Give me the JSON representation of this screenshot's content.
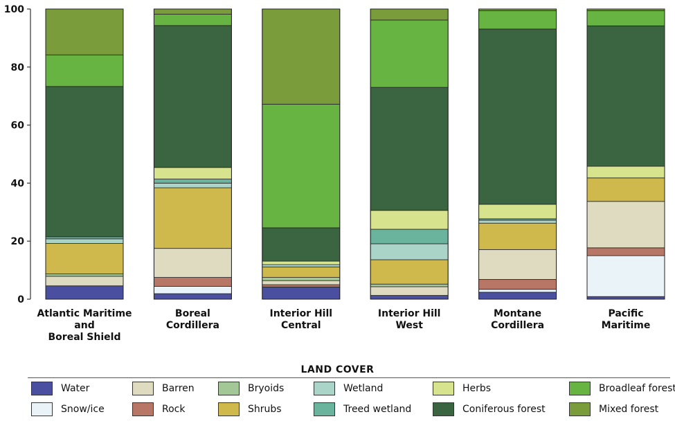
{
  "chart_data": {
    "type": "bar",
    "stacked": true,
    "ylim": [
      0,
      100
    ],
    "yticks": [
      0,
      20,
      40,
      60,
      80,
      100
    ],
    "categories": [
      "Atlantic Maritime\nand\nBoreal Shield",
      "Boreal\nCordillera",
      "Interior Hill\nCentral",
      "Interior Hill\nWest",
      "Montane\nCordillera",
      "Pacific\nMaritime"
    ],
    "legend_title": "LAND COVER",
    "series": [
      {
        "name": "Water",
        "color": "#4b4fa0",
        "values": [
          4.6,
          1.9,
          4.2,
          1.3,
          2.4,
          0.9
        ]
      },
      {
        "name": "Snow/ice",
        "color": "#eaf3f7",
        "values": [
          0,
          2.5,
          0,
          0,
          1.0,
          14.1
        ]
      },
      {
        "name": "Rock",
        "color": "#b87766",
        "values": [
          0,
          3.1,
          0.8,
          0,
          3.4,
          2.7
        ]
      },
      {
        "name": "Barren",
        "color": "#dfdbc1",
        "values": [
          3.3,
          10.0,
          1.4,
          3.0,
          10.3,
          16.0
        ]
      },
      {
        "name": "Bryoids",
        "color": "#a3c796",
        "values": [
          0.8,
          0,
          1.1,
          0.9,
          0,
          0
        ]
      },
      {
        "name": "Shrubs",
        "color": "#d0b94c",
        "values": [
          10.5,
          20.9,
          3.6,
          8.4,
          9.1,
          8.1
        ]
      },
      {
        "name": "Wetland",
        "color": "#a9d4c7",
        "values": [
          1.6,
          1.6,
          0.8,
          5.5,
          1.0,
          0
        ]
      },
      {
        "name": "Treed wetland",
        "color": "#6ab39c",
        "values": [
          0.7,
          1.4,
          0,
          5.0,
          0.5,
          0
        ]
      },
      {
        "name": "Herbs",
        "color": "#d7e38d",
        "values": [
          0,
          4.0,
          1.2,
          6.5,
          5.0,
          4.0
        ]
      },
      {
        "name": "Coniferous forest",
        "color": "#3b6441",
        "values": [
          51.8,
          48.9,
          11.5,
          42.4,
          60.4,
          48.4
        ]
      },
      {
        "name": "Broadleaf forest",
        "color": "#68b443",
        "values": [
          10.9,
          3.9,
          42.6,
          23.2,
          6.3,
          5.2
        ]
      },
      {
        "name": "Mixed forest",
        "color": "#7b9c3a",
        "values": [
          15.8,
          1.8,
          32.8,
          3.8,
          0.6,
          0.6
        ]
      }
    ]
  }
}
